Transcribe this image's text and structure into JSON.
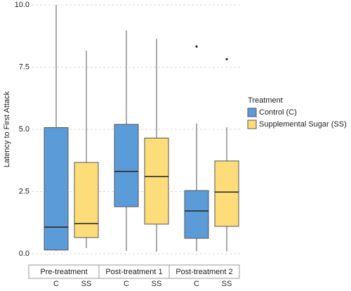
{
  "chart_data": {
    "type": "box",
    "y_label": "Latency to First Attack",
    "facets": [
      "Pre-treatment",
      "Post-treatment 1",
      "Post-treatment 2"
    ],
    "group_labels": [
      "C",
      "SS"
    ],
    "legend_title": "Treatment",
    "ylim": [
      0,
      10
    ],
    "yticks": [
      {
        "value": 0,
        "label": "0.0"
      },
      2.5,
      {
        "value": 5,
        "label": "5.0"
      },
      7.5,
      {
        "value": 10,
        "label": "10.0"
      }
    ],
    "grid": true,
    "series": [
      {
        "name": "Control (C)",
        "color": "#5b9bd8",
        "boxes": [
          {
            "min": 0.12,
            "q1": 0.15,
            "median": 1.07,
            "q3": 5.07,
            "max": 10.0,
            "outliers": []
          },
          {
            "min": 0.11,
            "q1": 1.89,
            "median": 3.31,
            "q3": 5.2,
            "max": 8.98,
            "outliers": []
          },
          {
            "min": 0.1,
            "q1": 0.62,
            "median": 1.72,
            "q3": 2.54,
            "max": 5.23,
            "outliers": [
              8.33
            ]
          }
        ]
      },
      {
        "name": "Supplemental Sugar (SS)",
        "color": "#fddc7a",
        "boxes": [
          {
            "min": 0.23,
            "q1": 0.65,
            "median": 1.21,
            "q3": 3.67,
            "max": 8.16,
            "outliers": []
          },
          {
            "min": 0.08,
            "q1": 1.19,
            "median": 3.1,
            "q3": 4.65,
            "max": 8.64,
            "outliers": []
          },
          {
            "min": 0.1,
            "q1": 1.1,
            "median": 2.48,
            "q3": 3.73,
            "max": 5.08,
            "outliers": [
              7.82
            ]
          }
        ]
      }
    ]
  }
}
